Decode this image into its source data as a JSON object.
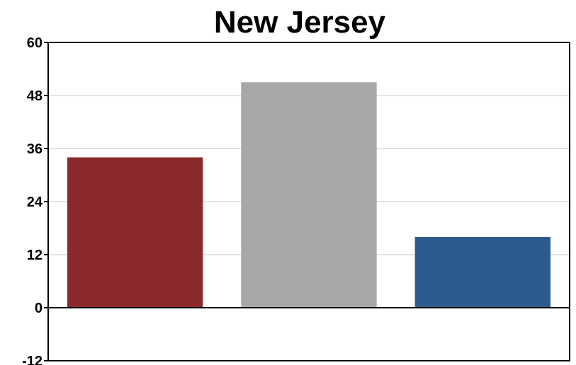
{
  "chart_data": {
    "type": "bar",
    "title": "New Jersey",
    "categories": [
      "",
      "",
      ""
    ],
    "values": [
      34,
      51,
      16
    ],
    "bar_colors": [
      "#8B2A2C",
      "#A8A8A8",
      "#2C5C8E"
    ],
    "ylim": [
      -12,
      60
    ],
    "yticks": [
      -12,
      0,
      12,
      24,
      36,
      48,
      60
    ],
    "grid": true,
    "xlabel": "",
    "ylabel": ""
  }
}
